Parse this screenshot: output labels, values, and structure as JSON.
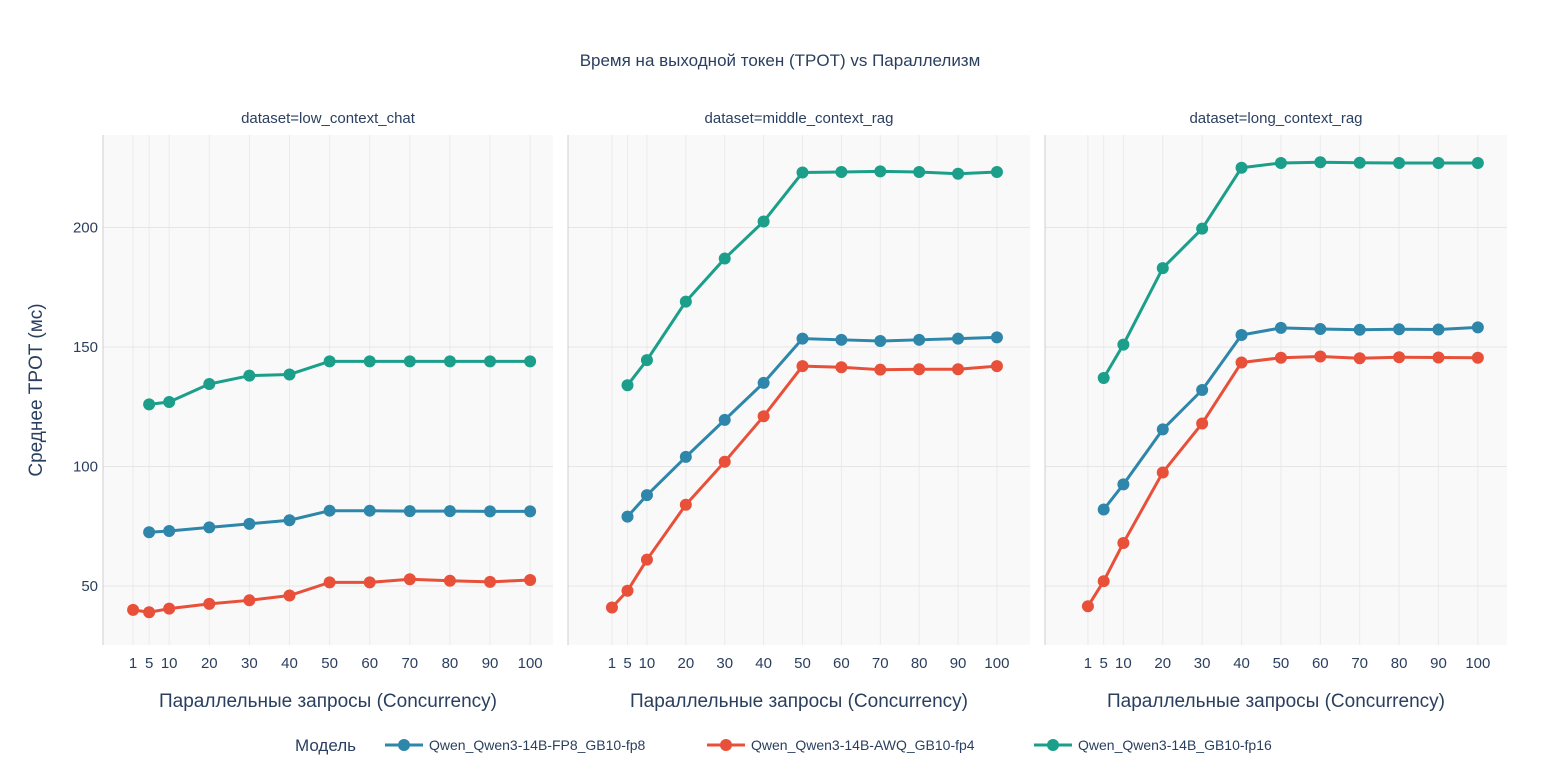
{
  "chart_data": {
    "type": "line",
    "title": "Время на выходной токен (TPOT) vs Параллелизм",
    "ylabel": "Среднее TPOT (мс)",
    "xlabel": "Параллельные запросы (Concurrency)",
    "ylim": [
      25.3,
      238.7
    ],
    "yticks": [
      50,
      100,
      150,
      200
    ],
    "xticks": [
      1,
      5,
      10,
      20,
      30,
      40,
      50,
      60,
      70,
      80,
      90,
      100
    ],
    "grid": true,
    "legend": {
      "title": "Модель",
      "placement": "bottom"
    },
    "series_styles": [
      {
        "name": "Qwen_Qwen3-14B-FP8_GB10-fp8",
        "color": "#2E86AB"
      },
      {
        "name": "Qwen_Qwen3-14B-AWQ_GB10-fp4",
        "color": "#E8503A"
      },
      {
        "name": "Qwen_Qwen3-14B_GB10-fp16",
        "color": "#1B9E8A"
      }
    ],
    "panels": [
      {
        "title": "dataset=low_context_chat",
        "xlim": [
          -6.5,
          105.7
        ],
        "series": [
          {
            "name": "Qwen_Qwen3-14B-FP8_GB10-fp8",
            "x": [
              5,
              10,
              20,
              30,
              40,
              50,
              60,
              70,
              80,
              90,
              100
            ],
            "y": [
              72.5,
              73,
              74.5,
              76,
              77.5,
              81.5,
              81.5,
              81.3,
              81.3,
              81.2,
              81.2
            ]
          },
          {
            "name": "Qwen_Qwen3-14B-AWQ_GB10-fp4",
            "x": [
              1,
              5,
              10,
              20,
              30,
              40,
              50,
              60,
              70,
              80,
              90,
              100
            ],
            "y": [
              40,
              39,
              40.5,
              42.5,
              44,
              46,
              51.5,
              51.5,
              52.8,
              52.2,
              51.7,
              52.5
            ]
          },
          {
            "name": "Qwen_Qwen3-14B_GB10-fp16",
            "x": [
              5,
              10,
              20,
              30,
              40,
              50,
              60,
              70,
              80,
              90,
              100
            ],
            "y": [
              126,
              127,
              134.5,
              138,
              138.5,
              144,
              144,
              144,
              144,
              144,
              144
            ]
          }
        ]
      },
      {
        "title": "dataset=middle_context_rag",
        "xlim": [
          -10.3,
          108.5
        ],
        "series": [
          {
            "name": "Qwen_Qwen3-14B-FP8_GB10-fp8",
            "x": [
              5,
              10,
              20,
              30,
              40,
              50,
              60,
              70,
              80,
              90,
              100
            ],
            "y": [
              79,
              88,
              104,
              119.5,
              135,
              153.5,
              153,
              152.5,
              153,
              153.5,
              154
            ]
          },
          {
            "name": "Qwen_Qwen3-14B-AWQ_GB10-fp4",
            "x": [
              1,
              5,
              10,
              20,
              30,
              40,
              50,
              60,
              70,
              80,
              90,
              100
            ],
            "y": [
              41,
              48,
              61,
              84,
              102,
              121,
              142,
              141.5,
              140.5,
              140.7,
              140.7,
              142
            ]
          },
          {
            "name": "Qwen_Qwen3-14B_GB10-fp16",
            "x": [
              5,
              10,
              20,
              30,
              40,
              50,
              60,
              70,
              80,
              90,
              100
            ],
            "y": [
              134,
              144.5,
              169,
              187,
              202.5,
              223,
              223.2,
              223.5,
              223.2,
              222.5,
              223.2
            ]
          }
        ]
      },
      {
        "title": "dataset=long_context_rag",
        "xlim": [
          -9.9,
          107.4
        ],
        "series": [
          {
            "name": "Qwen_Qwen3-14B-FP8_GB10-fp8",
            "x": [
              5,
              10,
              20,
              30,
              40,
              50,
              60,
              70,
              80,
              90,
              100
            ],
            "y": [
              82,
              92.5,
              115.5,
              132,
              155,
              158,
              157.5,
              157.2,
              157.4,
              157.3,
              158.2
            ]
          },
          {
            "name": "Qwen_Qwen3-14B-AWQ_GB10-fp4",
            "x": [
              1,
              5,
              10,
              20,
              30,
              40,
              50,
              60,
              70,
              80,
              90,
              100
            ],
            "y": [
              41.5,
              52,
              68,
              97.5,
              118,
              143.5,
              145.5,
              146,
              145.3,
              145.7,
              145.6,
              145.5
            ]
          },
          {
            "name": "Qwen_Qwen3-14B_GB10-fp16",
            "x": [
              5,
              10,
              20,
              30,
              40,
              50,
              60,
              70,
              80,
              90,
              100
            ],
            "y": [
              137,
              151,
              183,
              199.5,
              225,
              227,
              227.3,
              227.1,
              227,
              227,
              227
            ]
          }
        ]
      }
    ]
  }
}
